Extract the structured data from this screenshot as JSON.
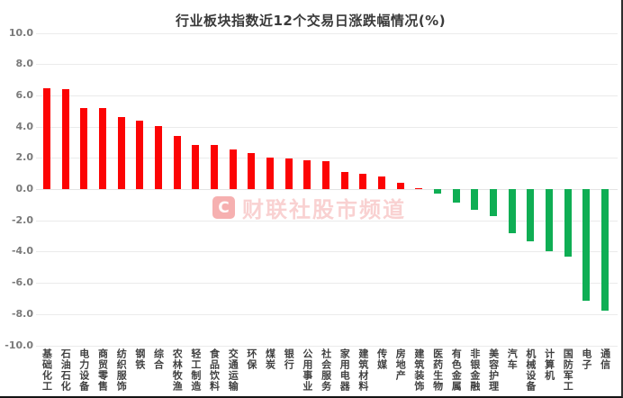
{
  "page": {
    "title": "行业板块指数近12个交易日涨跌幅情况(%)"
  },
  "watermark": {
    "logo_letter": "C",
    "text": "财联社股市频道"
  },
  "chart_data": {
    "type": "bar",
    "title": "行业板块指数近12个交易日涨跌幅情况(%)",
    "xlabel": "",
    "ylabel": "",
    "categories": [
      "基础化工",
      "石油石化",
      "电力设备",
      "商贸零售",
      "纺织服饰",
      "钢铁",
      "综合",
      "农林牧渔",
      "轻工制造",
      "食品饮料",
      "交通运输",
      "环保",
      "煤炭",
      "银行",
      "公用事业",
      "社会服务",
      "家用电器",
      "建筑材料",
      "传媒",
      "房地产",
      "建筑装饰",
      "医药生物",
      "有色金属",
      "非银金融",
      "美容护理",
      "汽车",
      "机械设备",
      "计算机",
      "国防军工",
      "电子",
      "通信"
    ],
    "values": [
      6.45,
      6.4,
      5.2,
      5.2,
      4.6,
      4.4,
      4.05,
      3.4,
      2.8,
      2.8,
      2.55,
      2.3,
      2.0,
      1.95,
      1.85,
      1.8,
      1.1,
      1.0,
      0.8,
      0.4,
      0.07,
      -0.3,
      -0.85,
      -1.3,
      -1.7,
      -2.8,
      -3.35,
      -4.0,
      -4.3,
      -7.15,
      -7.8
    ],
    "ylim": [
      -10.0,
      10.0
    ],
    "ytick_interval": 2.0,
    "ytick_labels": [
      "10.0",
      "8.0",
      "6.0",
      "4.0",
      "2.0",
      "0.0",
      "-2.0",
      "-4.0",
      "-6.0",
      "-8.0",
      "-10.0"
    ],
    "grid": true,
    "legend": false,
    "colors": {
      "positive": "#fc0404",
      "negative": "#0fae54",
      "gridline": "#ebebeb",
      "title_text": "#3a3a3a",
      "ytick_text": "#7a7a7a",
      "xtick_text": "#414141"
    },
    "color_rule": "positive values red, negative values green",
    "orientation": "vertical",
    "xtick_orientation": "vertical-upright"
  }
}
